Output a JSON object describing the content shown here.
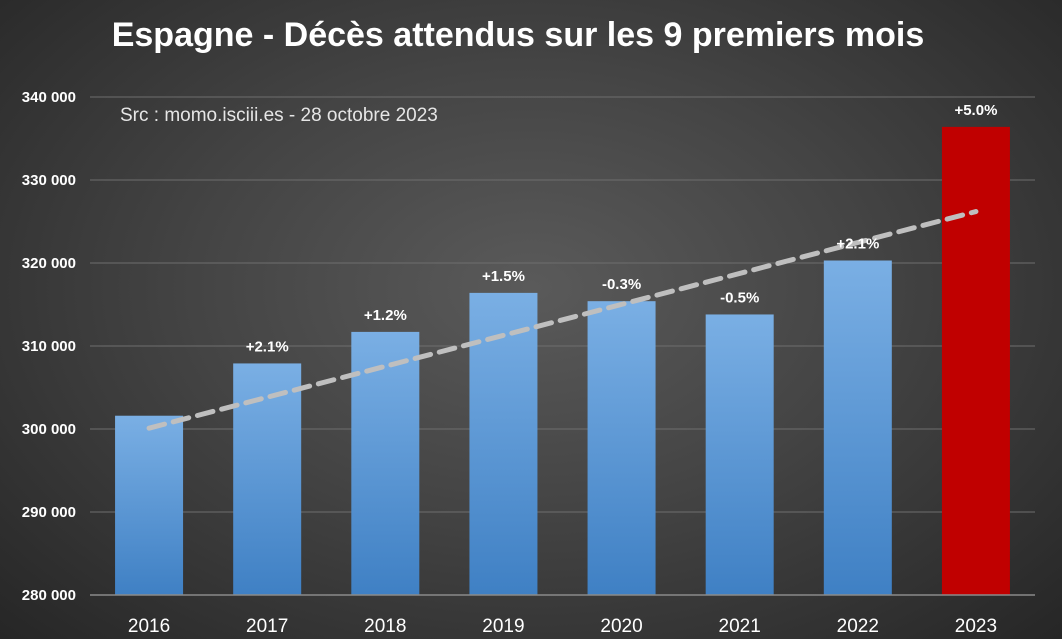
{
  "chart_data": {
    "type": "bar",
    "title": "Espagne - Décès attendus sur les 9 premiers mois",
    "subtitle": "Src : momo.isciii.es - 28 octobre 2023",
    "xlabel": "",
    "ylabel": "",
    "categories": [
      "2016",
      "2017",
      "2018",
      "2019",
      "2020",
      "2021",
      "2022",
      "2023"
    ],
    "values": [
      301600,
      307900,
      311700,
      316400,
      315400,
      313800,
      320300,
      336400
    ],
    "data_labels": [
      "",
      "+2.1%",
      "+1.2%",
      "+1.5%",
      "-0.3%",
      "-0.5%",
      "+2.1%",
      "+5.0%"
    ],
    "bar_colors": [
      "#5b9bd5",
      "#5b9bd5",
      "#5b9bd5",
      "#5b9bd5",
      "#5b9bd5",
      "#5b9bd5",
      "#5b9bd5",
      "#c00000"
    ],
    "ylim": [
      280000,
      340000
    ],
    "yticks": [
      280000,
      290000,
      300000,
      310000,
      320000,
      330000,
      340000
    ],
    "ytick_labels": [
      "280 000",
      "290 000",
      "300 000",
      "310 000",
      "320 000",
      "330 000",
      "340 000"
    ],
    "trendline": {
      "style": "dashed",
      "color": "#bfbfbf",
      "from": [
        "2016",
        300100
      ],
      "to": [
        "2023",
        326200
      ]
    },
    "grid": true,
    "legend": "none"
  }
}
